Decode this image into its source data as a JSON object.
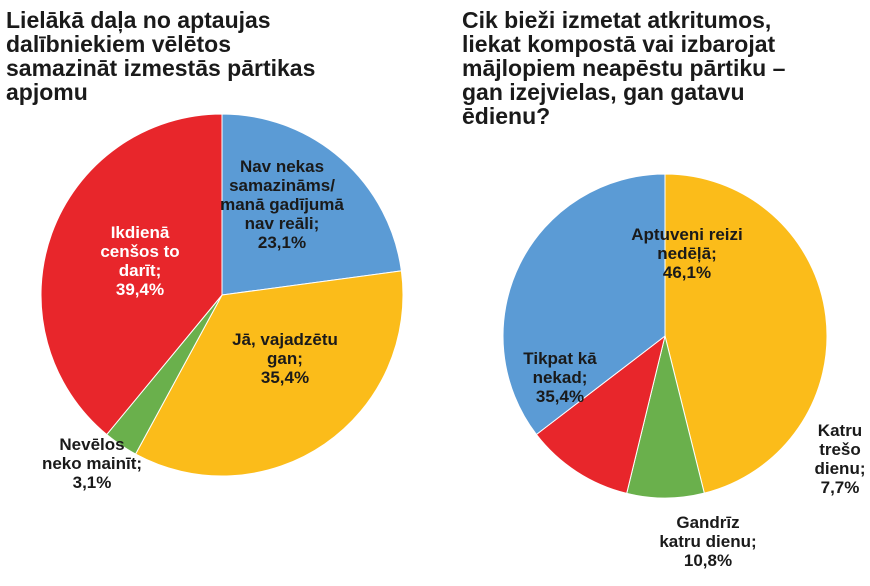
{
  "chart_data": [
    {
      "type": "pie",
      "title": "Lielākā daļa no aptaujas\ndalībniekiem vēlētos\nsamazināt izmestās pārtikas\napjomu",
      "slices": [
        {
          "label": "Nav nekas\nsamazināms/\nmanā gadījumā\nnav reāli;\n23,1%",
          "value": 23.1,
          "color": "#5b9bd5"
        },
        {
          "label": "Jā, vajadzētu\ngan;\n35,4%",
          "value": 35.4,
          "color": "#fbbc1a"
        },
        {
          "label": "Nevēlos\nneko mainīt;\n3,1%",
          "value": 3.1,
          "color": "#6ab04c"
        },
        {
          "label": "Ikdienā\ncenšos to\ndarīt;\n39,4%",
          "value": 39.4,
          "color": "#e8262b"
        }
      ]
    },
    {
      "type": "pie",
      "title": "Cik bieži izmetat atkritumos,\nliekat kompostā vai izbarojat\nmājlopiem neapēstu pārtiku –\ngan izejvielas, gan gatavu\nēdienu?",
      "slices": [
        {
          "label": "Aptuveni reizi\nnedēļā;\n46,1%",
          "value": 46.1,
          "color": "#fbbc1a"
        },
        {
          "label": "Katru\ntrešo\ndienu;\n7,7%",
          "value": 7.7,
          "color": "#6ab04c"
        },
        {
          "label": "Gandrīz\nkatru dienu;\n10,8%",
          "value": 10.8,
          "color": "#e8262b"
        },
        {
          "label": "Tikpat kā\nnekad;\n35,4%",
          "value": 35.4,
          "color": "#5b9bd5"
        }
      ]
    }
  ]
}
